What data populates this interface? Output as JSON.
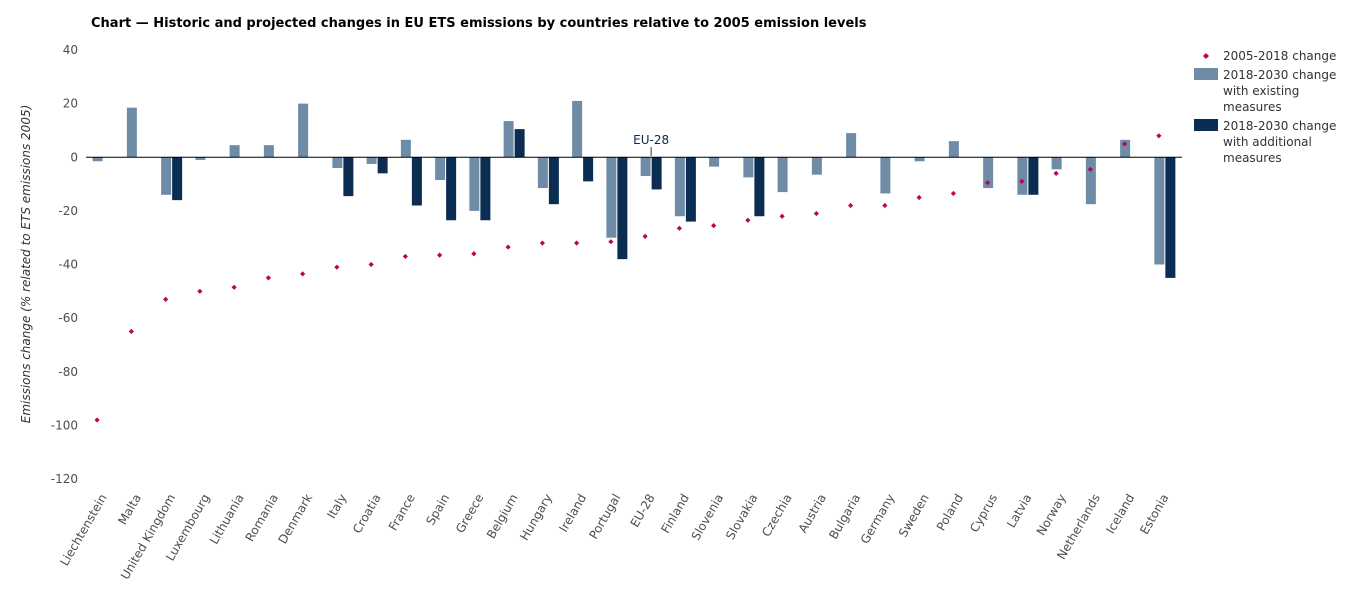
{
  "title": "Chart — Historic and projected changes in EU ETS emissions by countries relative to 2005 emission levels",
  "colors": {
    "existing": "#6f8ca6",
    "additional": "#0b2d52",
    "historic": "#c0005a",
    "axis": "#000000"
  },
  "chart_data": {
    "type": "bar",
    "ylabel": "Emissions change (% related to ETS emissions 2005)",
    "ylim": [
      -120,
      40
    ],
    "yticks": [
      40,
      20,
      0,
      -20,
      -40,
      -60,
      -80,
      -100,
      -120
    ],
    "grid": false,
    "legend_position": "top-right",
    "categories": [
      "Liechtenstein",
      "Malta",
      "United Kingdom",
      "Luxembourg",
      "Lithuania",
      "Romania",
      "Denmark",
      "Italy",
      "Croatia",
      "France",
      "Spain",
      "Greece",
      "Belgium",
      "Hungary",
      "Ireland",
      "Portugal",
      "EU-28",
      "Finland",
      "Slovenia",
      "Slovakia",
      "Czechia",
      "Austria",
      "Bulgaria",
      "Germany",
      "Sweden",
      "Poland",
      "Cyprus",
      "Latvia",
      "Norway",
      "Netherlands",
      "Iceland",
      "Estonia"
    ],
    "series": [
      {
        "name": "2005-2018 change",
        "kind": "marker",
        "values": [
          -98,
          -65,
          -53,
          -50,
          -48.5,
          -45,
          -43.5,
          -41,
          -40,
          -37,
          -36.5,
          -36,
          -33.5,
          -32,
          -32,
          -31.5,
          -29.5,
          -26.5,
          -25.5,
          -23.5,
          -22,
          -21,
          -18,
          -18,
          -15,
          -13.5,
          -9.5,
          -9,
          -6,
          -4.5,
          5,
          8
        ]
      },
      {
        "name": "2018-2030 change with existing measures",
        "kind": "bar",
        "values": [
          -1.5,
          18.5,
          -14,
          -1,
          4.5,
          4.5,
          20,
          -4,
          -2.5,
          6.5,
          -8.5,
          -20,
          13.5,
          -11.5,
          21,
          -30,
          -7,
          -22,
          -3.5,
          -7.5,
          -13,
          -6.5,
          9,
          -13.5,
          -1.5,
          6,
          -11.5,
          -14,
          -4.5,
          -17.5,
          6.5,
          -40
        ]
      },
      {
        "name": "2018-2030 change with additional measures",
        "kind": "bar",
        "values": [
          null,
          null,
          -16,
          null,
          null,
          null,
          null,
          -14.5,
          -6,
          -18,
          -23.5,
          -23.5,
          10.5,
          -17.5,
          -9,
          -38,
          -12,
          -24,
          null,
          -22,
          null,
          null,
          null,
          null,
          null,
          null,
          null,
          -14,
          null,
          null,
          null,
          -45
        ]
      }
    ],
    "legend": [
      {
        "label_lines": [
          "2005-2018 change"
        ]
      },
      {
        "label_lines": [
          "2018-2030 change",
          "with existing",
          "measures"
        ]
      },
      {
        "label_lines": [
          "2018-2030 change",
          "with additional",
          "measures"
        ]
      }
    ],
    "annotations": [
      {
        "text": "EU-28",
        "category": "EU-28"
      }
    ]
  }
}
